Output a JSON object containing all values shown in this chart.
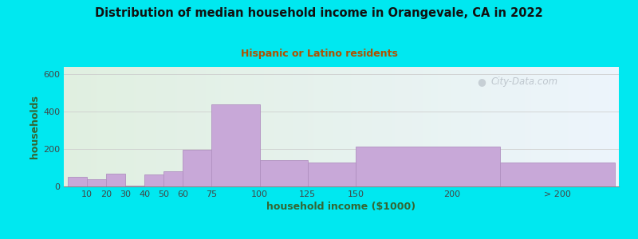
{
  "title": "Distribution of median household income in Orangevale, CA in 2022",
  "subtitle": "Hispanic or Latino residents",
  "xlabel": "household income ($1000)",
  "ylabel": "households",
  "background_outer": "#00e8f0",
  "bar_color": "#c8a8d8",
  "bar_edge_color": "#b090c0",
  "title_color": "#111111",
  "subtitle_color": "#b05000",
  "axis_label_color": "#336633",
  "tick_label_color": "#444444",
  "categories": [
    "10",
    "20",
    "30",
    "40",
    "50",
    "60",
    "75",
    "100",
    "125",
    "150",
    "200",
    "> 200"
  ],
  "values": [
    50,
    40,
    70,
    5,
    65,
    80,
    195,
    440,
    140,
    130,
    215,
    130
  ],
  "bar_lefts": [
    0,
    10,
    20,
    30,
    40,
    50,
    60,
    75,
    100,
    125,
    150,
    225
  ],
  "bar_rights": [
    10,
    20,
    30,
    40,
    50,
    60,
    75,
    100,
    125,
    150,
    225,
    285
  ],
  "tick_labels_x": [
    "10",
    "20",
    "30",
    "40",
    "50",
    "60",
    "75",
    "100",
    "125",
    "150",
    "200",
    "> 200"
  ],
  "tick_pos_x": [
    10,
    20,
    30,
    40,
    50,
    60,
    75,
    100,
    125,
    150,
    200,
    255
  ],
  "ylim": [
    0,
    640
  ],
  "yticks": [
    0,
    200,
    400,
    600
  ],
  "watermark": "City-Data.com"
}
